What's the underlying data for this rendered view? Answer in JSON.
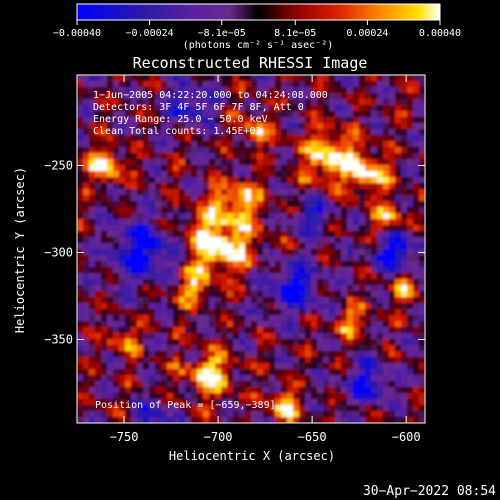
{
  "chart_data": {
    "type": "heatmap",
    "title": "Reconstructed RHESSI Image",
    "xlabel": "Heliocentric X (arcsec)",
    "ylabel": "Heliocentric Y (arcsec)",
    "xlim": [
      -775,
      -590
    ],
    "ylim": [
      -398,
      -198
    ],
    "xticks": [
      {
        "value": -750,
        "label": "−750"
      },
      {
        "value": -700,
        "label": "−700"
      },
      {
        "value": -650,
        "label": "−650"
      },
      {
        "value": -600,
        "label": "−600"
      }
    ],
    "yticks": [
      {
        "value": -250,
        "label": "−250"
      },
      {
        "value": -300,
        "label": "−300"
      },
      {
        "value": -350,
        "label": "−350"
      }
    ],
    "colorbar": {
      "range": [
        -0.0004,
        0.0004
      ],
      "ticks": [
        {
          "value": -0.0004,
          "label": "−0.00040"
        },
        {
          "value": -0.00024,
          "label": "−0.00024"
        },
        {
          "value": -8.1e-05,
          "label": "−8.1e−05"
        },
        {
          "value": 8.1e-05,
          "label": "8.1e−05"
        },
        {
          "value": 0.00024,
          "label": "0.00024"
        },
        {
          "value": 0.0004,
          "label": "0.00040"
        }
      ],
      "units_label": "(photons cm⁻² s⁻¹ asec⁻²)"
    },
    "annotations": [
      "1−Jun−2005 04:22:20.000 to 04:24:08.000",
      "Detectors: 3F 4F 5F 6F 7F 8F, Att 0",
      "Energy Range: 25.0 − 50.0 keV",
      "Clean    Total counts: 1.45E+03"
    ],
    "peak_label": "Position of Peak = [−659,−389]",
    "peak": [
      -659,
      -389
    ],
    "grid": false
  },
  "footer": {
    "timestamp": "30−Apr−2022 08:54"
  }
}
